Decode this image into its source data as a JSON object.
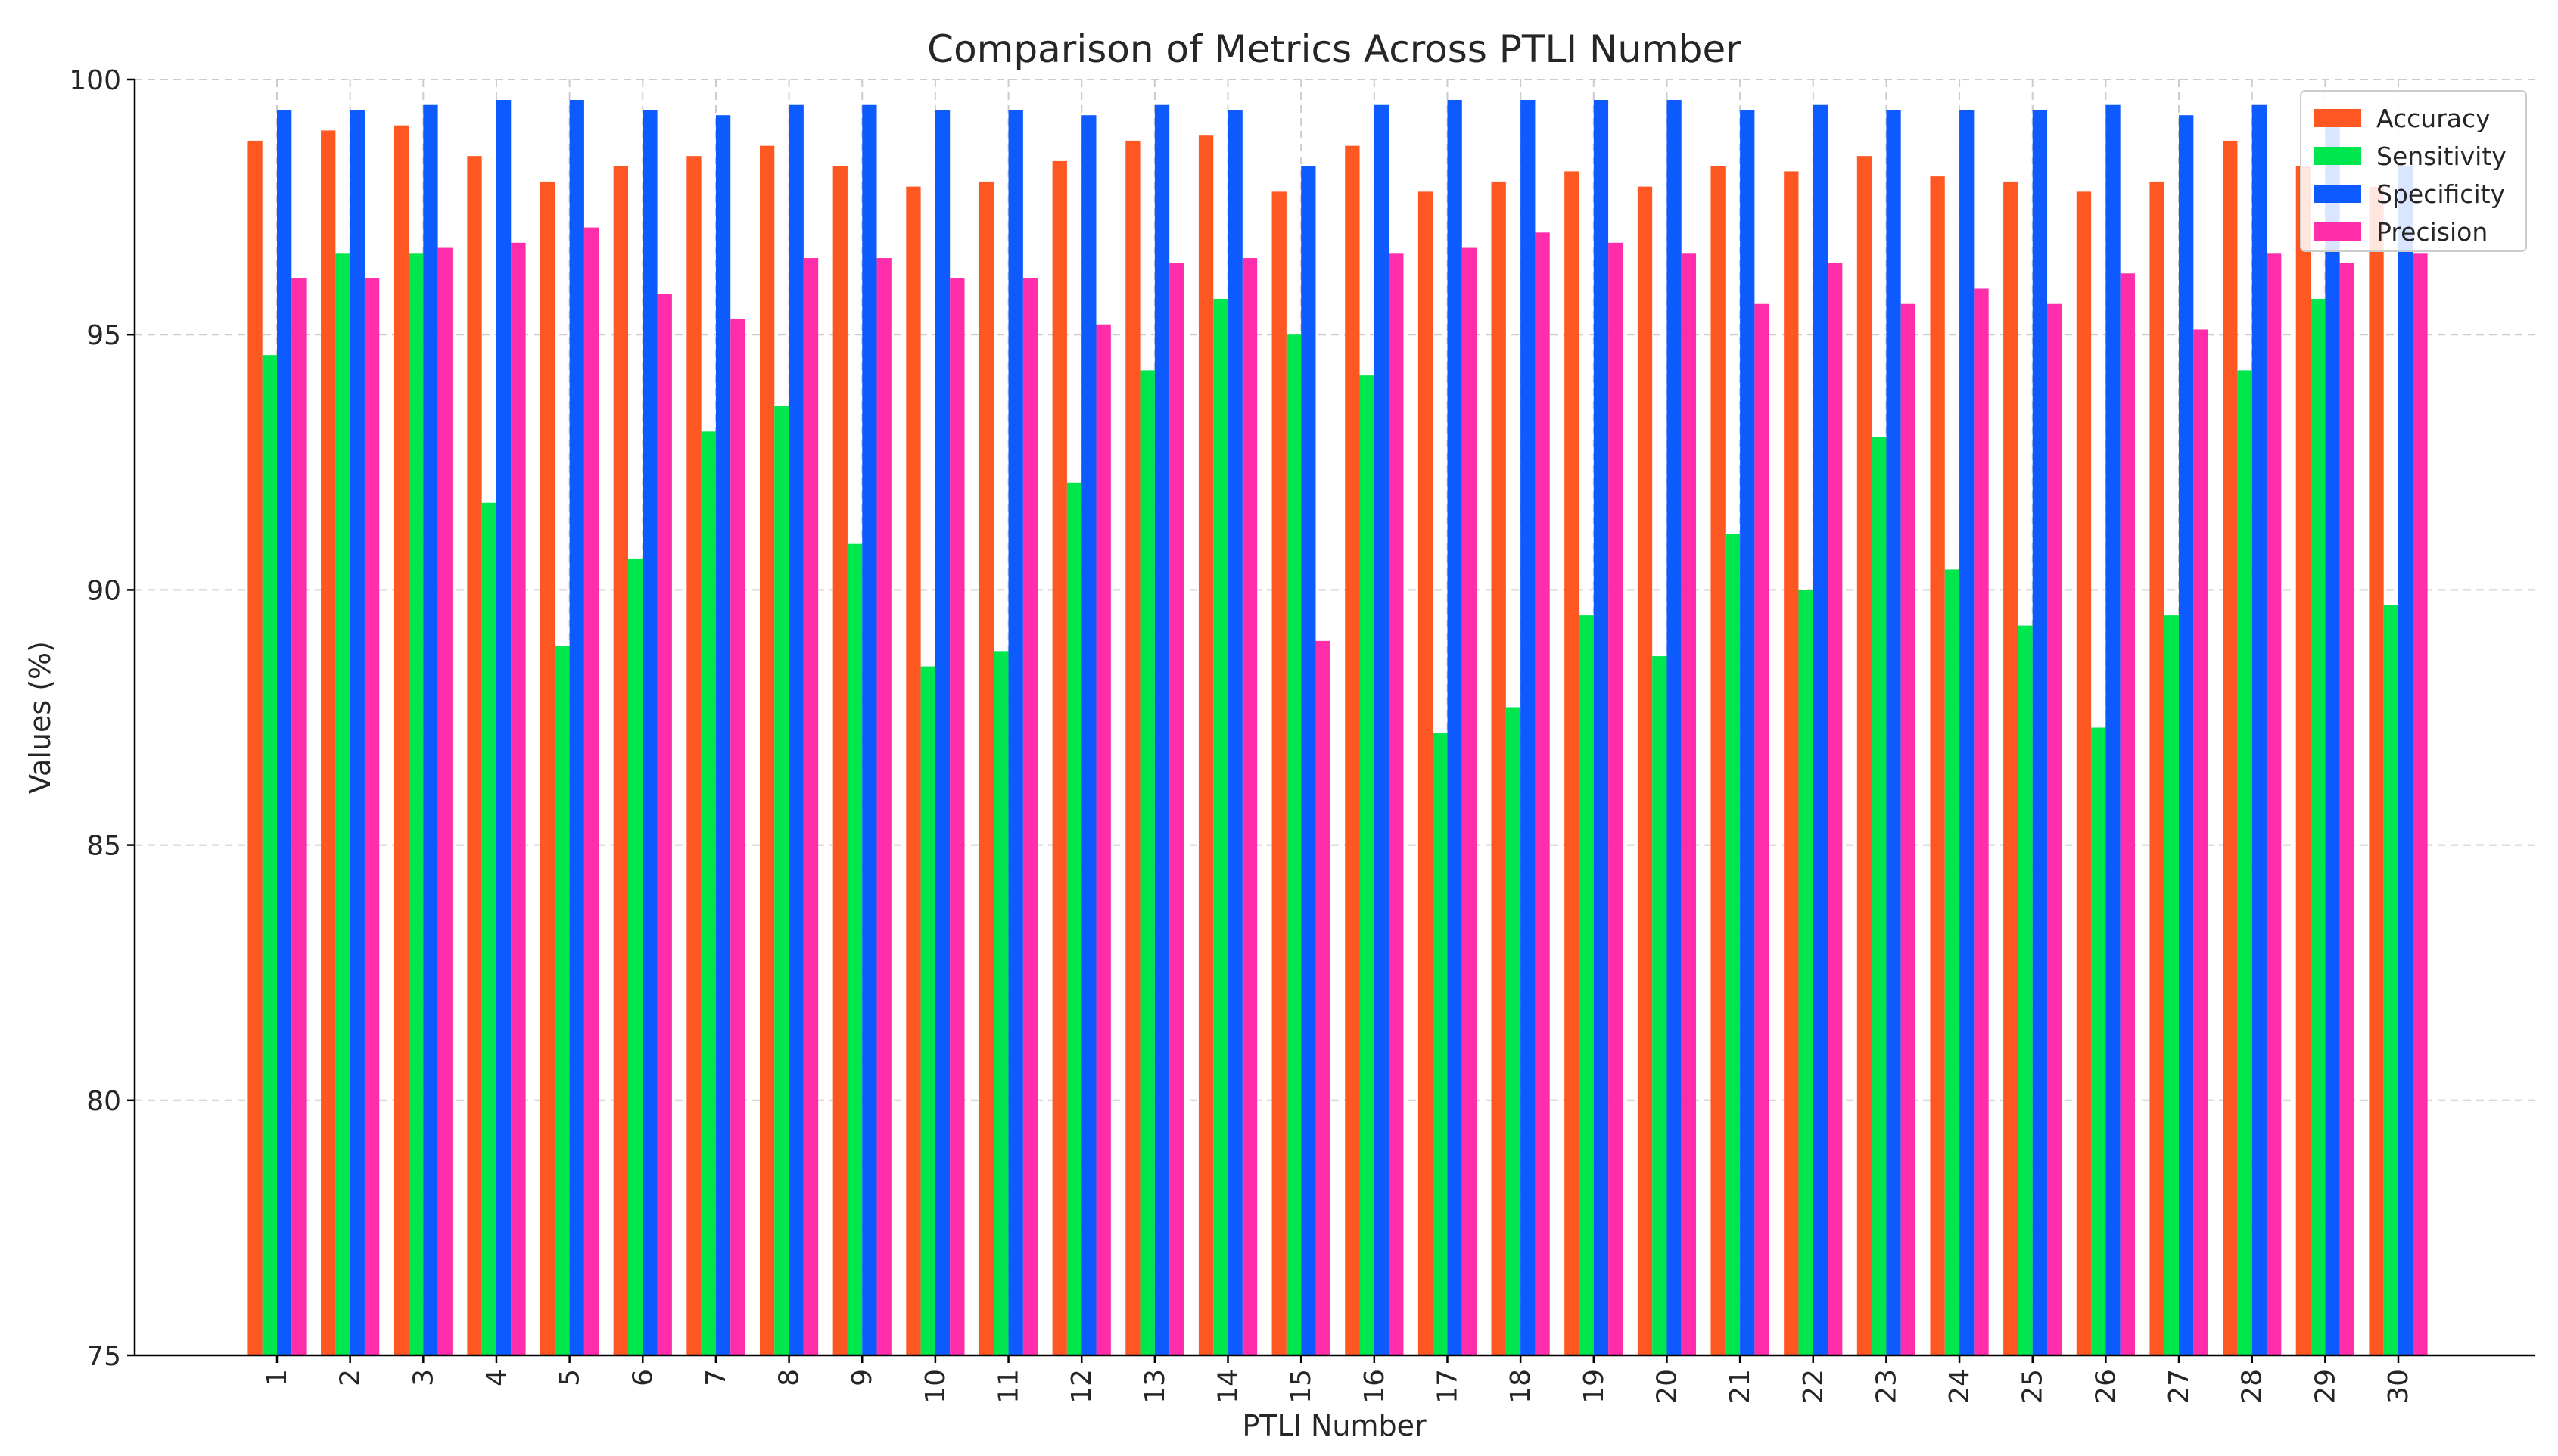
{
  "chart_data": {
    "type": "bar",
    "title": "Comparison of Metrics Across PTLI Number",
    "xlabel": "PTLI Number",
    "ylabel": "Values (%)",
    "ylim": [
      75,
      100
    ],
    "yticks": [
      75,
      80,
      85,
      90,
      95,
      100
    ],
    "grid": true,
    "legend_position": "top-right",
    "categories": [
      "1",
      "2",
      "3",
      "4",
      "5",
      "6",
      "7",
      "8",
      "9",
      "10",
      "11",
      "12",
      "13",
      "14",
      "15",
      "16",
      "17",
      "18",
      "19",
      "20",
      "21",
      "22",
      "23",
      "24",
      "25",
      "26",
      "27",
      "28",
      "29",
      "30"
    ],
    "series": [
      {
        "name": "Accuracy",
        "color": "#FF5722",
        "values": [
          98.8,
          99.0,
          99.1,
          98.5,
          98.0,
          98.3,
          98.5,
          98.7,
          98.3,
          97.9,
          98.0,
          98.4,
          98.8,
          98.9,
          97.8,
          98.7,
          97.8,
          98.0,
          98.2,
          97.9,
          98.3,
          98.2,
          98.5,
          98.1,
          98.0,
          97.8,
          98.0,
          98.8,
          98.3,
          97.9
        ]
      },
      {
        "name": "Sensitivity",
        "color": "#00E64D",
        "values": [
          94.6,
          96.6,
          96.6,
          91.7,
          88.9,
          90.6,
          93.1,
          93.6,
          90.9,
          88.5,
          88.8,
          92.1,
          94.3,
          95.7,
          95.0,
          94.2,
          87.2,
          87.7,
          89.5,
          88.7,
          91.1,
          90.0,
          93.0,
          90.4,
          89.3,
          87.3,
          89.5,
          94.3,
          95.7,
          89.7
        ]
      },
      {
        "name": "Specificity",
        "color": "#0D5BFF",
        "values": [
          99.4,
          99.4,
          99.5,
          99.6,
          99.6,
          99.4,
          99.3,
          99.5,
          99.5,
          99.4,
          99.4,
          99.3,
          99.5,
          99.4,
          98.3,
          99.5,
          99.6,
          99.6,
          99.6,
          99.6,
          99.4,
          99.5,
          99.4,
          99.4,
          99.4,
          99.5,
          99.3,
          99.5,
          99.4,
          98.3
        ]
      },
      {
        "name": "Precision",
        "color": "#FF2DAA",
        "values": [
          96.1,
          96.1,
          96.7,
          96.8,
          97.1,
          95.8,
          95.3,
          96.5,
          96.5,
          96.1,
          96.1,
          95.2,
          96.4,
          96.5,
          89.0,
          96.6,
          96.7,
          97.0,
          96.8,
          96.6,
          95.6,
          96.4,
          95.6,
          95.9,
          95.6,
          96.2,
          95.1,
          96.6,
          96.4,
          96.6
        ]
      }
    ]
  }
}
